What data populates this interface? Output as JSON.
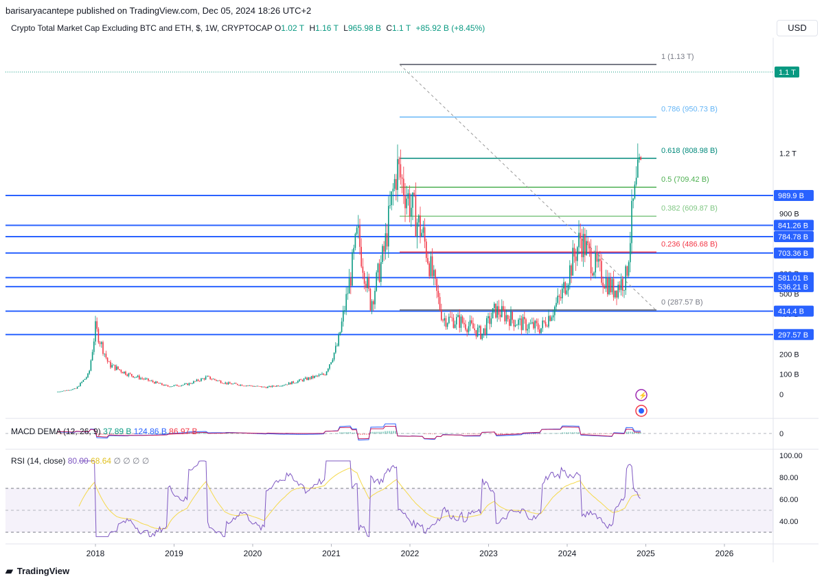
{
  "header": {
    "published": "barisaryacantepe published on TradingView.com, Dec 05, 2024 18:26 UTC+2"
  },
  "legend": {
    "symbol": "Crypto Total Market Cap Excluding BTC and ETH, $, 1W, CRYPTOCAP",
    "open_label": "O",
    "open": "1.02 T",
    "high_label": "H",
    "high": "1.16 T",
    "low_label": "L",
    "low": "965.98 B",
    "close_label": "C",
    "close": "1.1 T",
    "change": "+85.92 B (+8.45%)"
  },
  "currency": "USD",
  "colors": {
    "up": "#089981",
    "down": "#f23645",
    "level_line": "#2962ff",
    "rsi": "#7e57c2",
    "rsi_ma": "#f5d94b",
    "fib_0786": "#64b5f6",
    "fib_0618": "#00897b",
    "fib_05": "#4caf50",
    "fib_0382": "#81c784",
    "fib_0236": "#f23645",
    "fib_gray": "#787b86"
  },
  "price_axis": {
    "ticks": [
      "1.2 T",
      "900 B",
      "800 B",
      "600 B",
      "500 B",
      "400 B",
      "200 B",
      "100 B",
      "0"
    ],
    "last_price": "1.1 T"
  },
  "levels": [
    {
      "value": 989.9,
      "label": "989.9 B"
    },
    {
      "value": 841.26,
      "label": "841.26 B"
    },
    {
      "value": 784.78,
      "label": "784.78 B"
    },
    {
      "value": 703.36,
      "label": "703.36 B"
    },
    {
      "value": 581.01,
      "label": "581.01 B"
    },
    {
      "value": 536.21,
      "label": "536.21 B"
    },
    {
      "value": 414.4,
      "label": "414.4 B"
    },
    {
      "value": 297.57,
      "label": "297.57 B"
    }
  ],
  "fib": [
    {
      "ratio": 1,
      "value": 1130,
      "label": "1 (1.13 T)",
      "color": "#787b86"
    },
    {
      "ratio": 0.786,
      "value": 950.73,
      "label": "0.786 (950.73 B)",
      "color": "#64b5f6"
    },
    {
      "ratio": 0.618,
      "value": 808.98,
      "label": "0.618 (808.98 B)",
      "color": "#00897b"
    },
    {
      "ratio": 0.5,
      "value": 709.42,
      "label": "0.5 (709.42 B)",
      "color": "#4caf50"
    },
    {
      "ratio": 0.382,
      "value": 609.87,
      "label": "0.382 (609.87 B)",
      "color": "#81c784"
    },
    {
      "ratio": 0.236,
      "value": 486.68,
      "label": "0.236 (486.68 B)",
      "color": "#f23645"
    },
    {
      "ratio": 0,
      "value": 287.57,
      "label": "0 (287.57 B)",
      "color": "#787b86"
    }
  ],
  "macd": {
    "title": "MACD DEMA (12, 26, 9)",
    "v1": "37.89 B",
    "v2": "124.86 B",
    "v3": "86.97 B",
    "axis": "0"
  },
  "rsi": {
    "title": "RSI (14, close)",
    "value": "80.00",
    "ma": "68.64",
    "na": "∅ ∅ ∅ ∅",
    "axis": [
      "100.00",
      "80.00",
      "60.00",
      "40.00"
    ]
  },
  "time_axis": [
    "2018",
    "2019",
    "2020",
    "2021",
    "2022",
    "2023",
    "2024",
    "2025",
    "2026"
  ],
  "footer": {
    "brand": "TradingView"
  },
  "chart_data": {
    "type": "line",
    "title": "Crypto Total Market Cap Excluding BTC and ETH, $, 1W, CRYPTOCAP",
    "xlabel": "",
    "ylabel": "",
    "units": "billion USD",
    "x": [
      "2017-07",
      "2017-10",
      "2017-12",
      "2018-01",
      "2018-03",
      "2018-06",
      "2018-09",
      "2018-12",
      "2019-03",
      "2019-06",
      "2019-09",
      "2019-12",
      "2020-03",
      "2020-06",
      "2020-09",
      "2020-12",
      "2021-02",
      "2021-04",
      "2021-05",
      "2021-07",
      "2021-09",
      "2021-11",
      "2022-01",
      "2022-03",
      "2022-05",
      "2022-06",
      "2022-09",
      "2022-12",
      "2023-02",
      "2023-06",
      "2023-09",
      "2023-12",
      "2024-03",
      "2024-05",
      "2024-08",
      "2024-10",
      "2024-11",
      "2024-12"
    ],
    "series": [
      {
        "values": [
          12,
          28,
          100,
          330,
          150,
          100,
          70,
          40,
          50,
          85,
          55,
          45,
          35,
          50,
          75,
          100,
          250,
          600,
          800,
          450,
          700,
          1130,
          950,
          790,
          510,
          380,
          360,
          300,
          420,
          350,
          330,
          480,
          780,
          650,
          520,
          580,
          920,
          1100
        ]
      }
    ],
    "ylim": [
      0,
      1200
    ],
    "grid": false
  }
}
